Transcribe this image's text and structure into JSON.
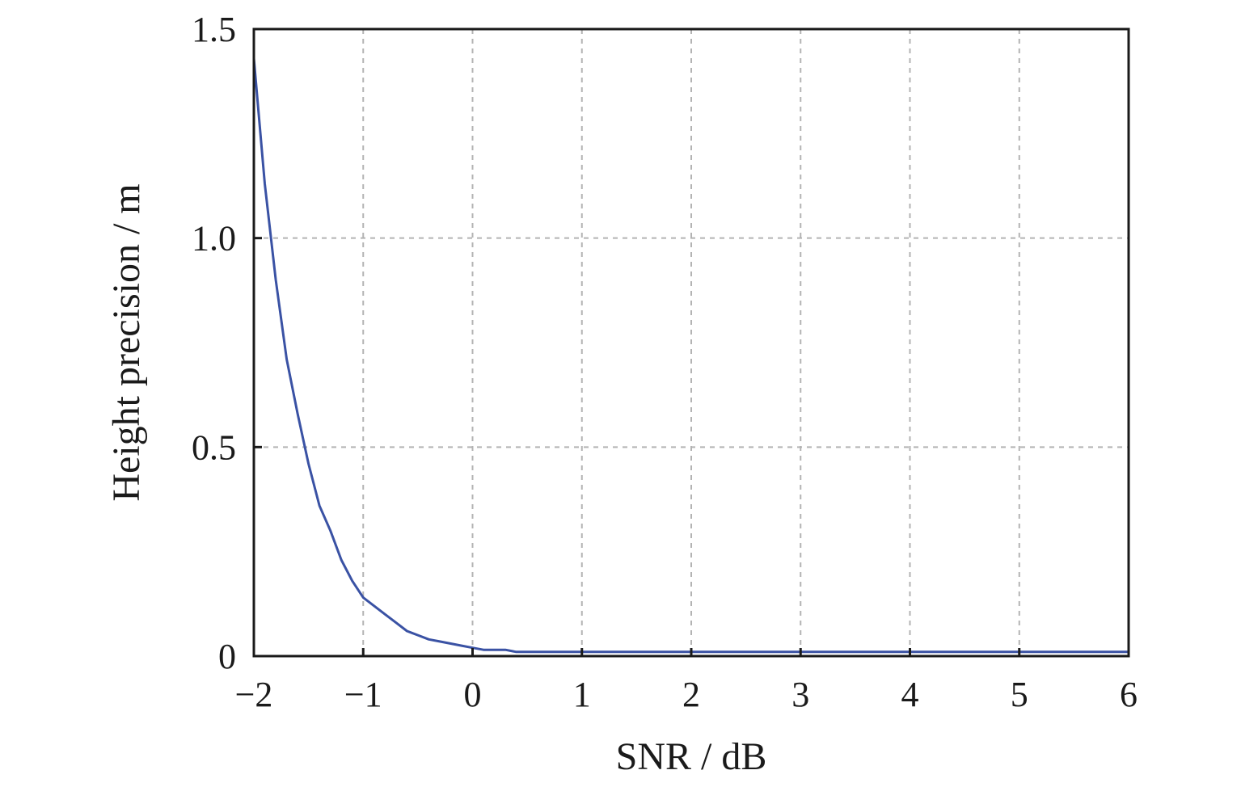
{
  "chart_data": {
    "type": "line",
    "title": "",
    "xlabel": "SNR / dB",
    "ylabel": "Height precision / m",
    "xlim": [
      -2,
      6
    ],
    "ylim": [
      0,
      1.5
    ],
    "x_ticks": [
      -2,
      -1,
      0,
      1,
      2,
      3,
      4,
      5,
      6
    ],
    "x_tick_labels": [
      "−2",
      "−1",
      "0",
      "1",
      "2",
      "3",
      "4",
      "5",
      "6"
    ],
    "y_ticks": [
      0,
      0.5,
      1.0,
      1.5
    ],
    "y_tick_labels": [
      "0",
      "0.5",
      "1.0",
      "1.5"
    ],
    "grid": true,
    "series": [
      {
        "color": "#3a52a4",
        "x": [
          -2.0,
          -1.9,
          -1.8,
          -1.7,
          -1.6,
          -1.5,
          -1.4,
          -1.3,
          -1.2,
          -1.1,
          -1.0,
          -0.9,
          -0.8,
          -0.7,
          -0.6,
          -0.5,
          -0.4,
          -0.3,
          -0.2,
          -0.1,
          0.0,
          0.1,
          0.2,
          0.3,
          0.4,
          0.5,
          1.0,
          2.0,
          3.0,
          4.0,
          5.0,
          6.0
        ],
        "y": [
          1.43,
          1.13,
          0.9,
          0.71,
          0.58,
          0.46,
          0.36,
          0.3,
          0.23,
          0.18,
          0.14,
          0.12,
          0.1,
          0.08,
          0.06,
          0.05,
          0.04,
          0.035,
          0.03,
          0.025,
          0.02,
          0.015,
          0.015,
          0.015,
          0.01,
          0.01,
          0.01,
          0.01,
          0.01,
          0.01,
          0.01,
          0.01
        ]
      }
    ]
  }
}
